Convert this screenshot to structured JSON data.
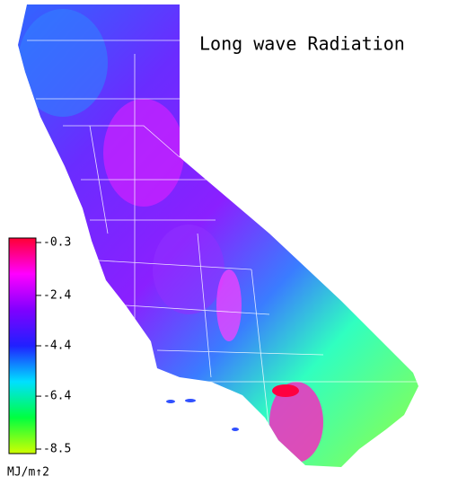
{
  "title": "Long wave Radiation",
  "colorbar": {
    "range": [
      -8.5,
      -0.3
    ],
    "ticks": [
      -0.3,
      -2.4,
      -4.4,
      -6.4,
      -8.5
    ],
    "unit": "MJ/m↑2",
    "colors": [
      "#ff0033",
      "#ff00ff",
      "#8000ff",
      "#2020ff",
      "#00e0ff",
      "#00ff40",
      "#d0ff00"
    ]
  }
}
